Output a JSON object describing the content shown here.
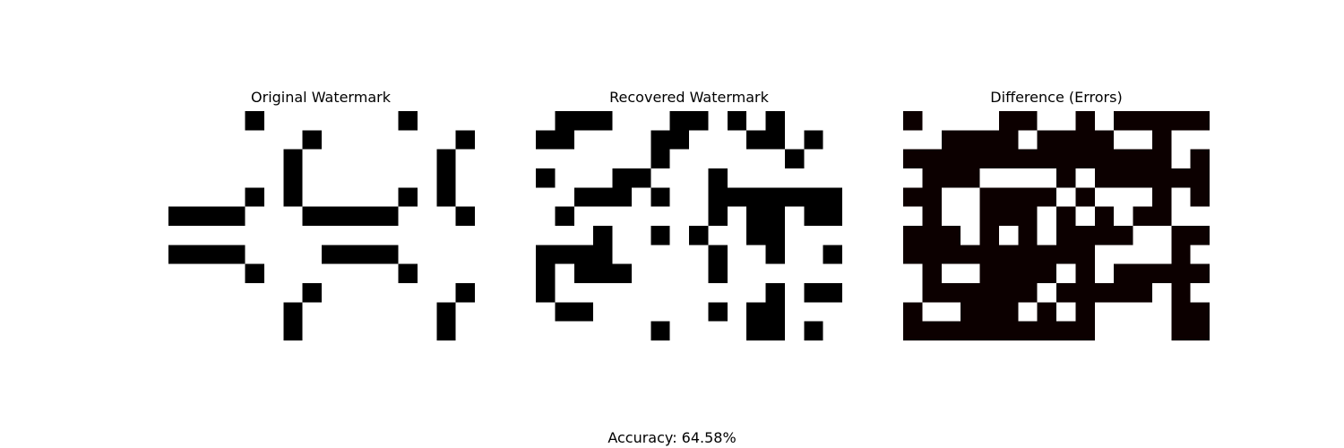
{
  "chart_data": [
    {
      "type": "heatmap",
      "title": "Original Watermark",
      "colors": {
        "one": "#000000",
        "zero": "#ffffff"
      },
      "matrix": [
        [
          0,
          0,
          0,
          0,
          1,
          0,
          0,
          0,
          0,
          0,
          0,
          0,
          1,
          0,
          0,
          0
        ],
        [
          0,
          0,
          0,
          0,
          0,
          0,
          0,
          1,
          0,
          0,
          0,
          0,
          0,
          0,
          0,
          1
        ],
        [
          0,
          0,
          0,
          0,
          0,
          0,
          1,
          0,
          0,
          0,
          0,
          0,
          0,
          0,
          1,
          0
        ],
        [
          0,
          0,
          0,
          0,
          0,
          0,
          1,
          0,
          0,
          0,
          0,
          0,
          0,
          0,
          1,
          0
        ],
        [
          0,
          0,
          0,
          0,
          1,
          0,
          1,
          0,
          0,
          0,
          0,
          0,
          1,
          0,
          1,
          0
        ],
        [
          1,
          1,
          1,
          1,
          0,
          0,
          0,
          1,
          1,
          1,
          1,
          1,
          0,
          0,
          0,
          1
        ],
        [
          0,
          0,
          0,
          0,
          0,
          0,
          0,
          0,
          0,
          0,
          0,
          0,
          0,
          0,
          0,
          0
        ],
        [
          1,
          1,
          1,
          1,
          0,
          0,
          0,
          0,
          1,
          1,
          1,
          1,
          0,
          0,
          0,
          0
        ],
        [
          0,
          0,
          0,
          0,
          1,
          0,
          0,
          0,
          0,
          0,
          0,
          0,
          1,
          0,
          0,
          0
        ],
        [
          0,
          0,
          0,
          0,
          0,
          0,
          0,
          1,
          0,
          0,
          0,
          0,
          0,
          0,
          0,
          1
        ],
        [
          0,
          0,
          0,
          0,
          0,
          0,
          1,
          0,
          0,
          0,
          0,
          0,
          0,
          0,
          1,
          0
        ],
        [
          0,
          0,
          0,
          0,
          0,
          0,
          1,
          0,
          0,
          0,
          0,
          0,
          0,
          0,
          1,
          0
        ]
      ]
    },
    {
      "type": "heatmap",
      "title": "Recovered Watermark",
      "colors": {
        "one": "#000000",
        "zero": "#ffffff"
      },
      "matrix": [
        [
          0,
          1,
          1,
          1,
          0,
          0,
          0,
          1,
          1,
          0,
          1,
          0,
          1,
          0,
          0,
          0
        ],
        [
          1,
          1,
          0,
          0,
          0,
          0,
          1,
          1,
          0,
          0,
          0,
          1,
          1,
          0,
          1,
          0
        ],
        [
          0,
          0,
          0,
          0,
          0,
          0,
          1,
          0,
          0,
          0,
          0,
          0,
          0,
          1,
          0,
          0
        ],
        [
          1,
          0,
          0,
          0,
          1,
          1,
          0,
          0,
          0,
          1,
          0,
          0,
          0,
          0,
          0,
          0
        ],
        [
          0,
          0,
          1,
          1,
          1,
          0,
          1,
          0,
          0,
          1,
          1,
          1,
          1,
          1,
          1,
          1
        ],
        [
          0,
          1,
          0,
          0,
          0,
          0,
          0,
          0,
          0,
          1,
          0,
          1,
          1,
          0,
          1,
          1
        ],
        [
          0,
          0,
          0,
          1,
          0,
          0,
          1,
          0,
          1,
          0,
          0,
          1,
          1,
          0,
          0,
          0
        ],
        [
          1,
          1,
          1,
          1,
          0,
          0,
          0,
          0,
          0,
          1,
          0,
          0,
          1,
          0,
          0,
          1
        ],
        [
          1,
          0,
          1,
          1,
          1,
          0,
          0,
          0,
          0,
          1,
          0,
          0,
          0,
          0,
          0,
          0
        ],
        [
          1,
          0,
          0,
          0,
          0,
          0,
          0,
          0,
          0,
          0,
          0,
          0,
          1,
          0,
          1,
          1
        ],
        [
          0,
          1,
          1,
          0,
          0,
          0,
          0,
          0,
          0,
          1,
          0,
          1,
          1,
          0,
          0,
          0
        ],
        [
          0,
          0,
          0,
          0,
          0,
          0,
          1,
          0,
          0,
          0,
          0,
          1,
          1,
          0,
          1,
          0
        ]
      ]
    },
    {
      "type": "heatmap",
      "title": "Difference (Errors)",
      "colors": {
        "one": "#0c0000",
        "zero": "#ffffff"
      },
      "matrix": [
        [
          1,
          0,
          0,
          0,
          0,
          1,
          1,
          0,
          0,
          1,
          0,
          1,
          1,
          1,
          1,
          1
        ],
        [
          0,
          0,
          1,
          1,
          1,
          1,
          0,
          1,
          1,
          1,
          1,
          0,
          0,
          1,
          0,
          0
        ],
        [
          1,
          1,
          1,
          1,
          1,
          1,
          1,
          1,
          1,
          1,
          1,
          1,
          1,
          1,
          0,
          1
        ],
        [
          0,
          1,
          1,
          1,
          0,
          0,
          0,
          0,
          1,
          0,
          1,
          1,
          1,
          1,
          1,
          1
        ],
        [
          1,
          1,
          0,
          0,
          1,
          1,
          1,
          1,
          0,
          1,
          0,
          0,
          0,
          1,
          0,
          1
        ],
        [
          0,
          1,
          0,
          0,
          1,
          1,
          1,
          0,
          1,
          0,
          1,
          0,
          1,
          1,
          0,
          0
        ],
        [
          1,
          1,
          1,
          0,
          1,
          0,
          1,
          0,
          1,
          1,
          1,
          1,
          0,
          0,
          1,
          1
        ],
        [
          1,
          1,
          1,
          1,
          1,
          1,
          1,
          1,
          1,
          1,
          0,
          0,
          0,
          0,
          1,
          0
        ],
        [
          0,
          1,
          0,
          0,
          1,
          1,
          1,
          1,
          0,
          1,
          0,
          1,
          1,
          1,
          1,
          1
        ],
        [
          0,
          1,
          1,
          1,
          1,
          1,
          1,
          0,
          1,
          1,
          1,
          1,
          1,
          0,
          1,
          0
        ],
        [
          1,
          0,
          0,
          1,
          1,
          1,
          0,
          1,
          0,
          1,
          0,
          0,
          0,
          0,
          1,
          1
        ],
        [
          1,
          1,
          1,
          1,
          1,
          1,
          1,
          1,
          1,
          1,
          0,
          0,
          0,
          0,
          1,
          1
        ]
      ]
    }
  ],
  "footer": {
    "accuracy_text": "Accuracy: 64.58%"
  }
}
